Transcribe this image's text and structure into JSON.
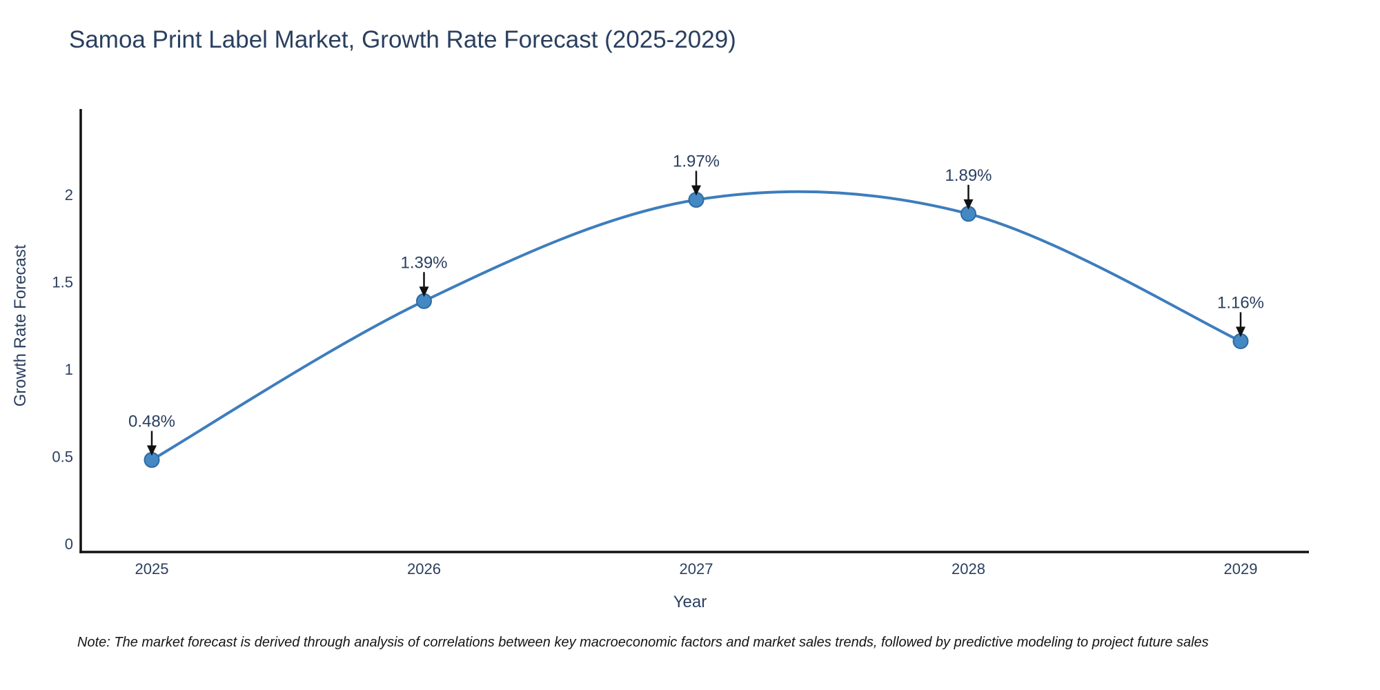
{
  "chart_data": {
    "type": "line",
    "title": "Samoa Print Label Market, Growth Rate Forecast (2025-2029)",
    "xlabel": "Year",
    "ylabel": "Growth Rate Forecast",
    "categories": [
      "2025",
      "2026",
      "2027",
      "2028",
      "2029"
    ],
    "values": [
      0.48,
      1.39,
      1.97,
      1.89,
      1.16
    ],
    "point_labels": [
      "0.48%",
      "1.39%",
      "1.97%",
      "1.89%",
      "1.16%"
    ],
    "yticks": [
      "0",
      "0.5",
      "1",
      "1.5",
      "2"
    ],
    "ytick_values": [
      0,
      0.5,
      1,
      1.5,
      2
    ],
    "ylim": [
      0,
      2.5
    ],
    "grid": false,
    "legend": "none",
    "smooth": true,
    "colors": {
      "line": "#3d7dbd",
      "marker_fill": "#4489c4",
      "marker_edge": "#2e6ba2",
      "arrow": "#111111",
      "text": "#2a3f5f",
      "axis_line": "#111111",
      "note_text": "#151515"
    },
    "note": "Note: The market forecast is derived through analysis of correlations between key macroeconomic factors and market sales trends, followed by predictive modeling to project future sales"
  }
}
